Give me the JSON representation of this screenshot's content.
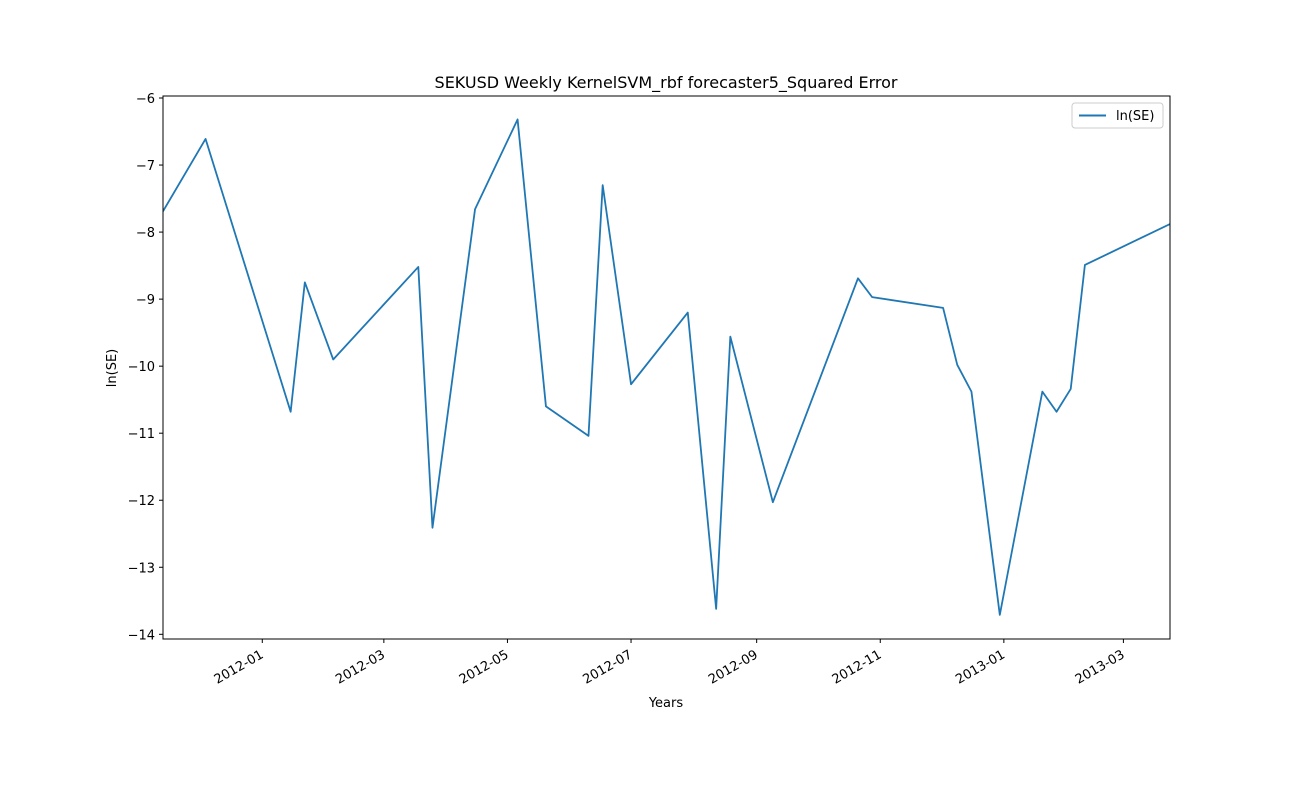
{
  "chart_data": {
    "type": "line",
    "title": "SEKUSD Weekly KernelSVM_rbf forecaster5_Squared Error",
    "xlabel": "Years",
    "ylabel": "ln(SE)",
    "xlim": [
      "2011-11-13",
      "2013-03-24"
    ],
    "ylim": [
      -14.07,
      -5.97
    ],
    "yticks": [
      -6,
      -7,
      -8,
      -9,
      -10,
      -11,
      -12,
      -13,
      -14
    ],
    "ytick_labels": [
      "−6",
      "−7",
      "−8",
      "−9",
      "−10",
      "−11",
      "−12",
      "−13",
      "−14"
    ],
    "xticks": [
      "2012-01-01",
      "2012-03-01",
      "2012-05-01",
      "2012-07-01",
      "2012-09-01",
      "2012-11-01",
      "2013-01-01",
      "2013-03-01"
    ],
    "xtick_labels": [
      "2012-01",
      "2012-03",
      "2012-05",
      "2012-07",
      "2012-09",
      "2012-11",
      "2013-01",
      "2013-03"
    ],
    "grid": false,
    "legend_position": "top-right",
    "series": [
      {
        "name": "ln(SE)",
        "color": "#1f77b4",
        "x": [
          "2011-11-13",
          "2011-12-04",
          "2012-01-15",
          "2012-01-22",
          "2012-02-05",
          "2012-03-18",
          "2012-03-25",
          "2012-04-15",
          "2012-05-06",
          "2012-05-20",
          "2012-06-10",
          "2012-06-17",
          "2012-07-01",
          "2012-07-29",
          "2012-08-12",
          "2012-08-19",
          "2012-09-09",
          "2012-10-21",
          "2012-10-28",
          "2012-12-02",
          "2012-12-09",
          "2012-12-16",
          "2012-12-30",
          "2013-01-20",
          "2013-01-27",
          "2013-02-03",
          "2013-02-10",
          "2013-03-24"
        ],
        "y": [
          -7.69,
          -6.61,
          -10.68,
          -8.75,
          -9.9,
          -8.52,
          -12.41,
          -7.66,
          -6.32,
          -10.6,
          -11.04,
          -7.3,
          -10.27,
          -9.2,
          -13.62,
          -9.56,
          -12.03,
          -8.69,
          -8.97,
          -9.13,
          -9.98,
          -10.38,
          -13.71,
          -10.38,
          -10.68,
          -10.34,
          -8.49,
          -7.88
        ]
      }
    ]
  }
}
